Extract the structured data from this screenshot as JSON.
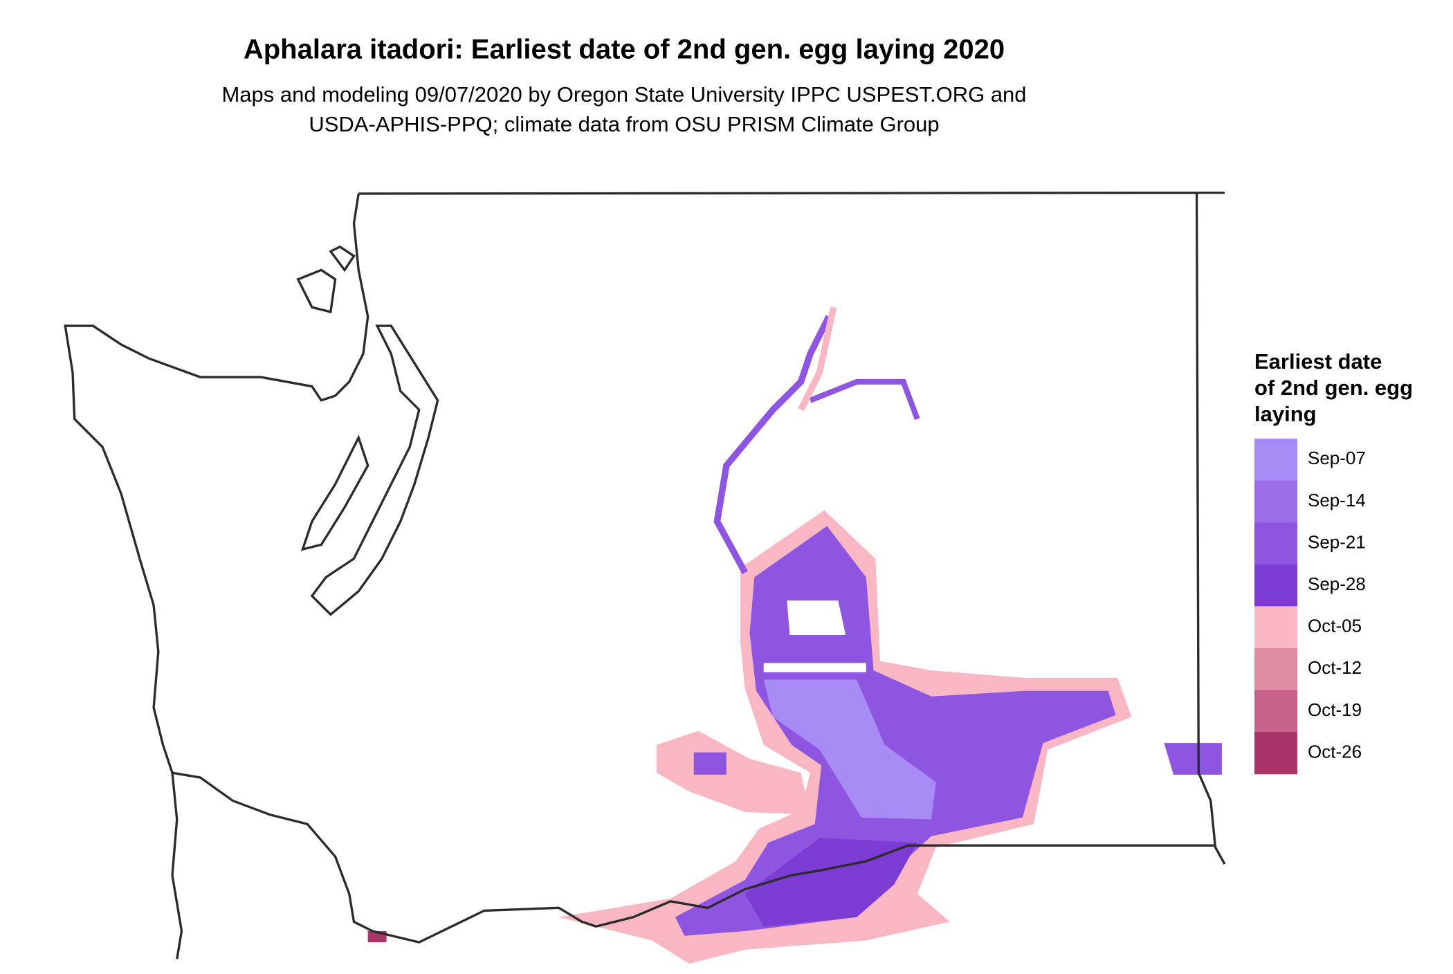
{
  "title": "Aphalara itadori: Earliest date of 2nd gen. egg laying 2020",
  "subtitle": [
    "Maps and modeling 09/07/2020 by Oregon State University IPPC USPEST.ORG and",
    "USDA-APHIS-PPQ; climate data from OSU PRISM Climate Group"
  ],
  "legend": {
    "title": [
      "Earliest date",
      "of 2nd gen. egg",
      "laying"
    ],
    "items": [
      {
        "label": "Sep-07",
        "color": "#a98bf5"
      },
      {
        "label": "Sep-14",
        "color": "#9c6fe9"
      },
      {
        "label": "Sep-21",
        "color": "#8d55e0"
      },
      {
        "label": "Sep-28",
        "color": "#7c3bd3"
      },
      {
        "label": "Oct-05",
        "color": "#f9b7c3"
      },
      {
        "label": "Oct-12",
        "color": "#e08ca2"
      },
      {
        "label": "Oct-19",
        "color": "#c8618a"
      },
      {
        "label": "Oct-26",
        "color": "#a8346a"
      }
    ]
  }
}
